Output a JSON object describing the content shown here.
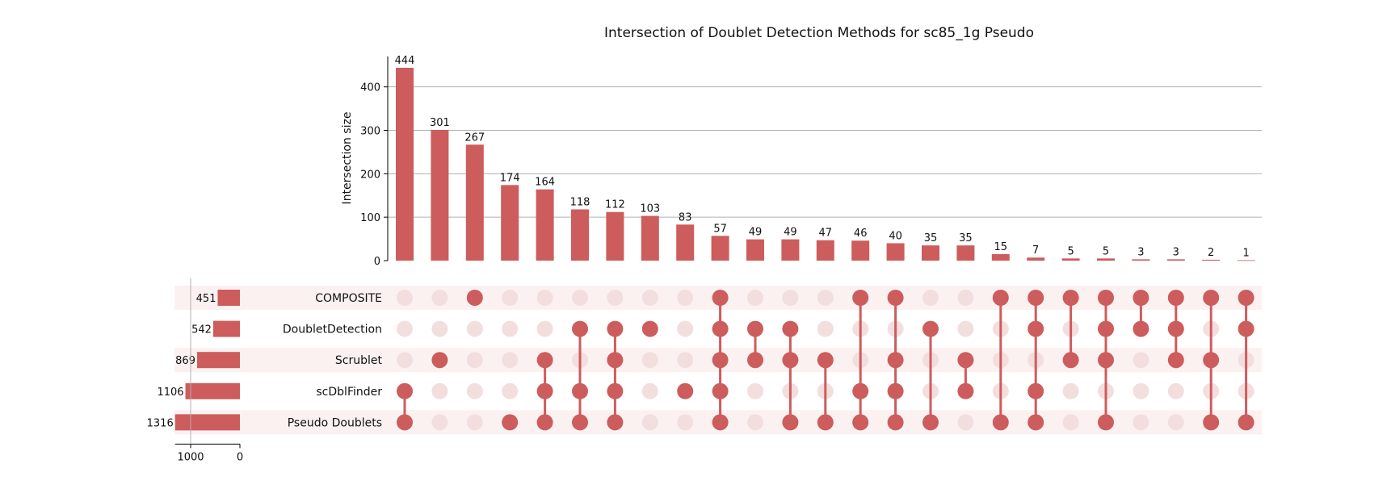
{
  "chart_data": {
    "type": "upset",
    "title": "Intersection of Doublet Detection Methods for sc85_1g Pseudo",
    "ylabel": "Intersection size",
    "ylim": [
      0,
      470
    ],
    "yticks": [
      0,
      100,
      200,
      300,
      400
    ],
    "grid": true,
    "colors": {
      "accent": "#cd5c5c",
      "inactive_dot": "#f3dede",
      "row_band": "#fbf1f1",
      "grid": "#b0b0b0"
    },
    "sets": [
      "COMPOSITE",
      "DoubletDetection",
      "Scrublet",
      "scDblFinder",
      "Pseudo Doublets"
    ],
    "set_sizes": [
      451,
      542,
      869,
      1106,
      1316
    ],
    "set_size_ticks": [
      1000,
      0
    ],
    "set_size_max": 1316,
    "intersections": [
      {
        "members": [
          3,
          4
        ],
        "value": 444
      },
      {
        "members": [
          2
        ],
        "value": 301
      },
      {
        "members": [
          0
        ],
        "value": 267
      },
      {
        "members": [
          4
        ],
        "value": 174
      },
      {
        "members": [
          2,
          3,
          4
        ],
        "value": 164
      },
      {
        "members": [
          1,
          3,
          4
        ],
        "value": 118
      },
      {
        "members": [
          1,
          2,
          3,
          4
        ],
        "value": 112
      },
      {
        "members": [
          1
        ],
        "value": 103
      },
      {
        "members": [
          3
        ],
        "value": 83
      },
      {
        "members": [
          0,
          1,
          2,
          3,
          4
        ],
        "value": 57
      },
      {
        "members": [
          1,
          2
        ],
        "value": 49
      },
      {
        "members": [
          1,
          2,
          4
        ],
        "value": 49
      },
      {
        "members": [
          2,
          4
        ],
        "value": 47
      },
      {
        "members": [
          0,
          3,
          4
        ],
        "value": 46
      },
      {
        "members": [
          0,
          2,
          3,
          4
        ],
        "value": 40
      },
      {
        "members": [
          1,
          4
        ],
        "value": 35
      },
      {
        "members": [
          2,
          3
        ],
        "value": 35
      },
      {
        "members": [
          0,
          4
        ],
        "value": 15
      },
      {
        "members": [
          0,
          1,
          3,
          4
        ],
        "value": 7
      },
      {
        "members": [
          0,
          2
        ],
        "value": 5
      },
      {
        "members": [
          0,
          1,
          2,
          4
        ],
        "value": 5
      },
      {
        "members": [
          0,
          1
        ],
        "value": 3
      },
      {
        "members": [
          0,
          1,
          2
        ],
        "value": 3
      },
      {
        "members": [
          0,
          2,
          4
        ],
        "value": 2
      },
      {
        "members": [
          0,
          1,
          4
        ],
        "value": 1
      }
    ]
  }
}
